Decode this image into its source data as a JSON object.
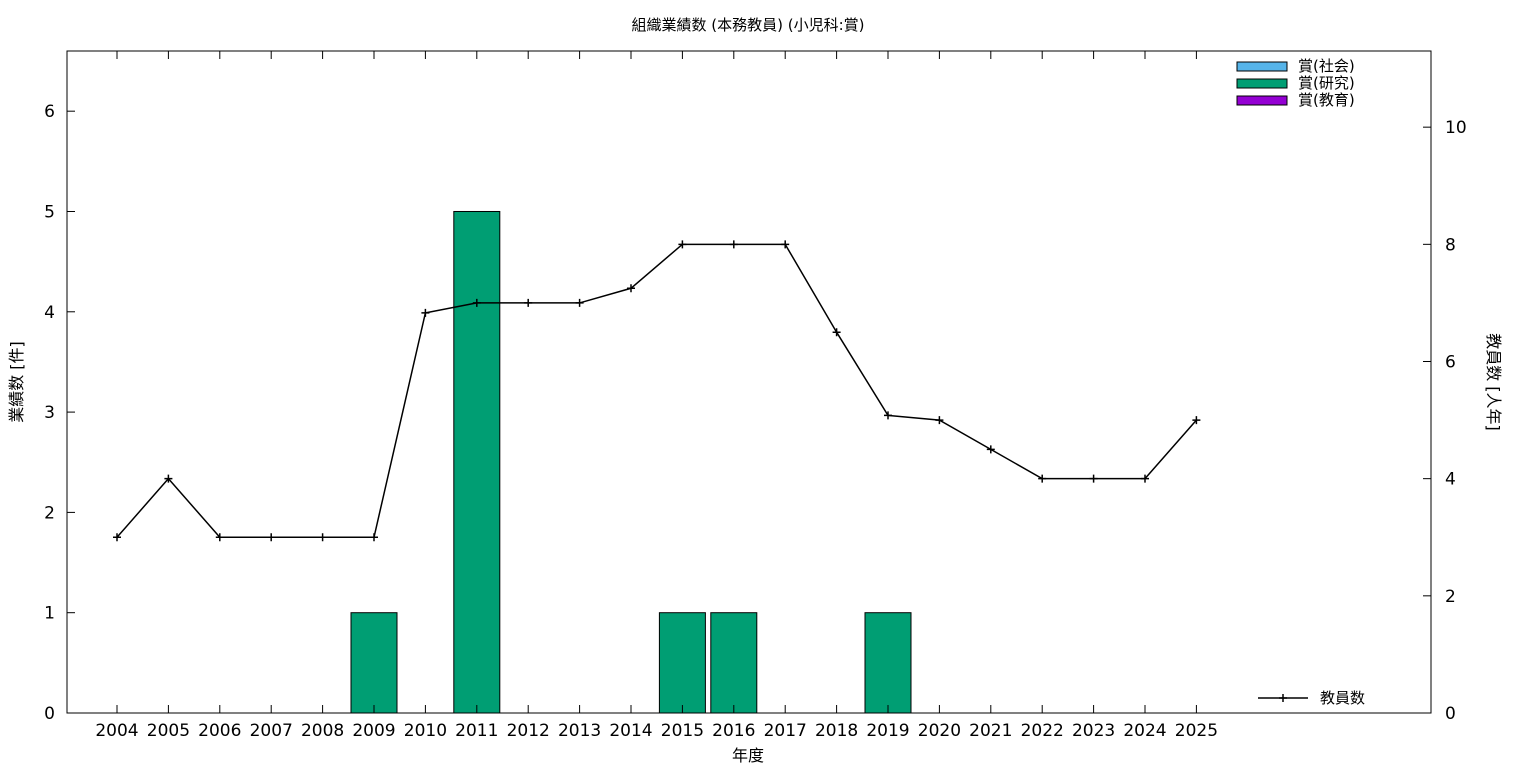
{
  "chart_data": {
    "type": "bar",
    "title": "組織業績数 (本務教員) (小児科:賞)",
    "xlabel": "年度",
    "ylabel": "業績数 [件]",
    "y2label": "教員数 [人年]",
    "categories": [
      "2004",
      "2005",
      "2006",
      "2007",
      "2008",
      "2009",
      "2010",
      "2011",
      "2012",
      "2013",
      "2014",
      "2015",
      "2016",
      "2017",
      "2018",
      "2019",
      "2020",
      "2021",
      "2022",
      "2023",
      "2024",
      "2025"
    ],
    "ylim": [
      0,
      6.6
    ],
    "yticks": [
      0,
      1,
      2,
      3,
      4,
      5,
      6
    ],
    "y2lim": [
      0,
      11.3
    ],
    "y2ticks": [
      0,
      2,
      4,
      6,
      8,
      10
    ],
    "series": [
      {
        "name": "賞(社会)",
        "color": "#56b4e9",
        "values": [
          0,
          0,
          0,
          0,
          0,
          0,
          0,
          0,
          0,
          0,
          0,
          0,
          0,
          0,
          0,
          0,
          0,
          0,
          0,
          0,
          0,
          0
        ]
      },
      {
        "name": "賞(研究)",
        "color": "#009e73",
        "values": [
          0,
          0,
          0,
          0,
          0,
          1,
          0,
          5,
          0,
          0,
          0,
          1,
          1,
          0,
          0,
          1,
          0,
          0,
          0,
          0,
          0,
          0
        ]
      },
      {
        "name": "賞(教育)",
        "color": "#9400d3",
        "values": [
          0,
          0,
          0,
          0,
          0,
          0,
          0,
          0,
          0,
          0,
          0,
          0,
          0,
          0,
          0,
          0,
          0,
          0,
          0,
          0,
          0,
          0
        ]
      }
    ],
    "line_series": {
      "name": "教員数",
      "color": "#000000",
      "axis": "y2",
      "values": [
        3,
        4,
        3,
        3,
        3,
        3,
        6.83,
        7,
        7,
        7,
        7.25,
        8,
        8,
        8,
        6.5,
        5.08,
        5,
        4.5,
        4,
        4,
        4,
        5
      ]
    },
    "legend_placement": "top-right (bars), bottom-right (line)",
    "grid": false
  }
}
